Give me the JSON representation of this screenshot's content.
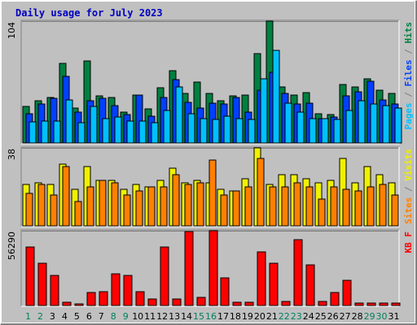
{
  "chart_data": {
    "type": "bar",
    "title": "Daily usage for July 2023",
    "categories": [
      "1",
      "2",
      "3",
      "4",
      "5",
      "6",
      "7",
      "8",
      "9",
      "10",
      "11",
      "12",
      "13",
      "14",
      "15",
      "16",
      "17",
      "18",
      "19",
      "20",
      "21",
      "22",
      "23",
      "24",
      "25",
      "26",
      "27",
      "28",
      "29",
      "30",
      "31"
    ],
    "weekend_days": [
      "1",
      "2",
      "8",
      "9",
      "15",
      "16",
      "22",
      "23",
      "29",
      "30"
    ],
    "panels": [
      {
        "name": "hits-files-pages",
        "max_label": "104",
        "ylim": [
          0,
          104
        ],
        "legend": [
          {
            "text": "Pages",
            "color": "#00c0ff"
          },
          {
            "text": "/",
            "color": "#808080"
          },
          {
            "text": "Files",
            "color": "#0040ff"
          },
          {
            "text": "/",
            "color": "#808080"
          },
          {
            "text": "Hits",
            "color": "#008040"
          }
        ],
        "series": [
          {
            "name": "Hits",
            "color": "#008040",
            "values": [
              31,
              36,
              39,
              68,
              30,
              70,
              40,
              39,
              26,
              41,
              29,
              47,
              62,
              42,
              52,
              42,
              36,
              40,
              41,
              76,
              104,
              48,
              41,
              43,
              25,
              24,
              50,
              48,
              55,
              45,
              42
            ]
          },
          {
            "name": "Files",
            "color": "#0040ff",
            "values": [
              25,
              33,
              38,
              57,
              26,
              36,
              38,
              32,
              24,
              41,
              23,
              39,
              54,
              35,
              30,
              34,
              33,
              39,
              26,
              45,
              60,
              42,
              33,
              34,
              21,
              22,
              40,
              44,
              53,
              37,
              33
            ]
          },
          {
            "name": "Pages",
            "color": "#00c0ff",
            "values": [
              18,
              19,
              19,
              37,
              17,
              31,
              21,
              22,
              19,
              19,
              17,
              28,
              48,
              25,
              21,
              20,
              23,
              21,
              20,
              55,
              79,
              34,
              26,
              21,
              21,
              20,
              28,
              36,
              33,
              32,
              30
            ]
          }
        ]
      },
      {
        "name": "visits-sites",
        "max_label": "38",
        "ylim": [
          0,
          38
        ],
        "legend": [
          {
            "text": "Sites",
            "color": "#ff8000"
          },
          {
            "text": "/",
            "color": "#808080"
          },
          {
            "text": "Visits",
            "color": "#f0f000"
          }
        ],
        "series": [
          {
            "name": "Visits",
            "color": "#f0f000",
            "values": [
              20,
              21,
              20,
              30,
              18,
              29,
              22,
              22,
              18,
              20,
              19,
              22,
              28,
              21,
              22,
              21,
              18,
              17,
              23,
              38,
              20,
              25,
              25,
              23,
              21,
              22,
              33,
              21,
              29,
              25,
              21
            ]
          },
          {
            "name": "Sites",
            "color": "#ff8000",
            "values": [
              16,
              20,
              15,
              29,
              12,
              19,
              22,
              21,
              15,
              17,
              19,
              19,
              25,
              20,
              21,
              32,
              15,
              17,
              19,
              33,
              19,
              19,
              21,
              19,
              13,
              19,
              18,
              17,
              19,
              20,
              15
            ]
          }
        ]
      },
      {
        "name": "kbytes",
        "max_label": "56290",
        "ylim": [
          0,
          56290
        ],
        "legend": [
          {
            "text": "KB",
            "color": "#ff0000"
          },
          {
            "text": "F",
            "color": "#ff0000"
          }
        ],
        "series": [
          {
            "name": "KBytes",
            "color": "#ff0000",
            "values": [
              44100,
              32000,
              22700,
              2400,
              1200,
              9900,
              10600,
              23700,
              22800,
              10100,
              4800,
              44300,
              4800,
              55400,
              5900,
              56290,
              21100,
              2400,
              2500,
              40200,
              31700,
              2800,
              49700,
              30700,
              3200,
              9800,
              18900,
              2000,
              1600,
              1600,
              1600
            ]
          }
        ]
      }
    ]
  }
}
